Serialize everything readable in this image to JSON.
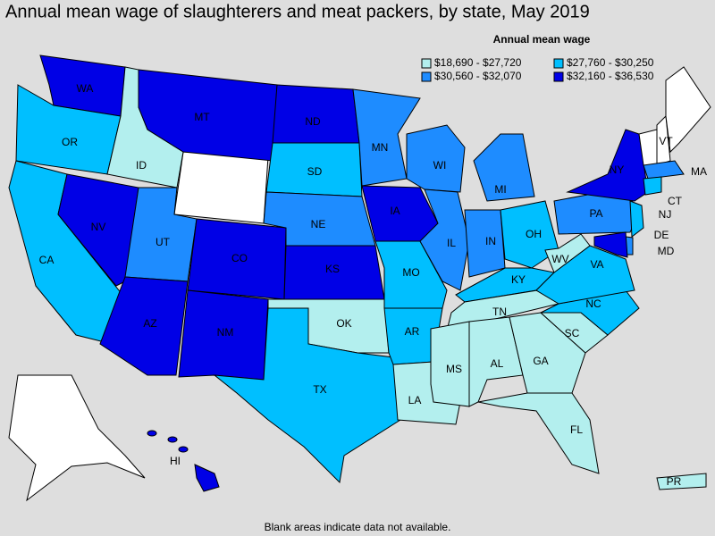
{
  "title": "Annual mean wage of slaughterers and meat packers, by state, May 2019",
  "legend": {
    "title": "Annual mean wage",
    "items": [
      {
        "label": "$18,690 - $27,720",
        "color": "#b3efee"
      },
      {
        "label": "$27,760 - $30,250",
        "color": "#00bfff"
      },
      {
        "label": "$30,560 - $32,070",
        "color": "#1e8cff"
      },
      {
        "label": "$32,160 - $36,530",
        "color": "#0000e6"
      }
    ]
  },
  "states": [
    {
      "abbr": "WA",
      "color": "#0000e6"
    },
    {
      "abbr": "OR",
      "color": "#00bfff"
    },
    {
      "abbr": "CA",
      "color": "#00bfff"
    },
    {
      "abbr": "NV",
      "color": "#0000e6"
    },
    {
      "abbr": "ID",
      "color": "#b3efee"
    },
    {
      "abbr": "MT",
      "color": "#0000e6"
    },
    {
      "abbr": "UT",
      "color": "#1e8cff"
    },
    {
      "abbr": "AZ",
      "color": "#0000e6"
    },
    {
      "abbr": "CO",
      "color": "#0000e6"
    },
    {
      "abbr": "NM",
      "color": "#0000e6"
    },
    {
      "abbr": "ND",
      "color": "#0000e6"
    },
    {
      "abbr": "SD",
      "color": "#00bfff"
    },
    {
      "abbr": "NE",
      "color": "#1e8cff"
    },
    {
      "abbr": "KS",
      "color": "#0000e6"
    },
    {
      "abbr": "OK",
      "color": "#b3efee"
    },
    {
      "abbr": "TX",
      "color": "#00bfff"
    },
    {
      "abbr": "MN",
      "color": "#1e8cff"
    },
    {
      "abbr": "IA",
      "color": "#0000e6"
    },
    {
      "abbr": "MO",
      "color": "#00bfff"
    },
    {
      "abbr": "AR",
      "color": "#00bfff"
    },
    {
      "abbr": "LA",
      "color": "#b3efee"
    },
    {
      "abbr": "WI",
      "color": "#1e8cff"
    },
    {
      "abbr": "IL",
      "color": "#1e8cff"
    },
    {
      "abbr": "MI",
      "color": "#1e8cff"
    },
    {
      "abbr": "IN",
      "color": "#1e8cff"
    },
    {
      "abbr": "OH",
      "color": "#00bfff"
    },
    {
      "abbr": "KY",
      "color": "#00bfff"
    },
    {
      "abbr": "TN",
      "color": "#b3efee"
    },
    {
      "abbr": "MS",
      "color": "#b3efee"
    },
    {
      "abbr": "AL",
      "color": "#b3efee"
    },
    {
      "abbr": "GA",
      "color": "#b3efee"
    },
    {
      "abbr": "FL",
      "color": "#b3efee"
    },
    {
      "abbr": "SC",
      "color": "#b3efee"
    },
    {
      "abbr": "NC",
      "color": "#00bfff"
    },
    {
      "abbr": "VA",
      "color": "#00bfff"
    },
    {
      "abbr": "WV",
      "color": "#b3efee"
    },
    {
      "abbr": "PA",
      "color": "#1e8cff"
    },
    {
      "abbr": "NY",
      "color": "#0000e6"
    },
    {
      "abbr": "VT",
      "color": "#ffffff"
    },
    {
      "abbr": "MA",
      "color": "#1e8cff"
    },
    {
      "abbr": "CT",
      "color": "#00bfff"
    },
    {
      "abbr": "NJ",
      "color": "#00bfff"
    },
    {
      "abbr": "DE",
      "color": "#1e8cff"
    },
    {
      "abbr": "MD",
      "color": "#0000e6"
    },
    {
      "abbr": "HI",
      "color": "#0000e6"
    },
    {
      "abbr": "PR",
      "color": "#b3efee"
    }
  ],
  "footnote": "Blank areas indicate data not available."
}
